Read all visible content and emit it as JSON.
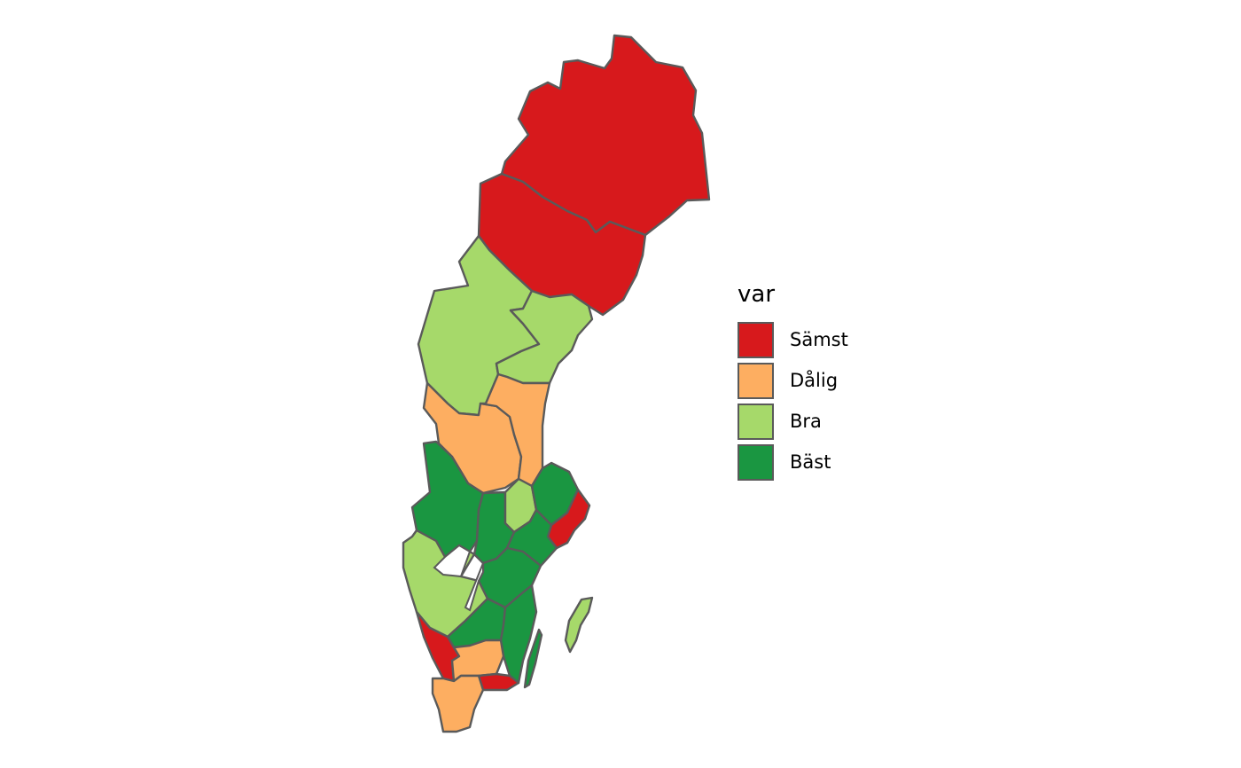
{
  "legend": {
    "title": "var",
    "items": [
      {
        "key": "samst",
        "label": "Sämst",
        "color": "#d7191c"
      },
      {
        "key": "dalig",
        "label": "Dålig",
        "color": "#fdae61"
      },
      {
        "key": "bra",
        "label": "Bra",
        "color": "#a6d96a"
      },
      {
        "key": "bast",
        "label": "Bäst",
        "color": "#1a9641"
      }
    ]
  },
  "map_regions": [
    {
      "name": "norrbotten",
      "category": "samst"
    },
    {
      "name": "vasterbotten",
      "category": "samst"
    },
    {
      "name": "jamtland",
      "category": "bra"
    },
    {
      "name": "vasternorrland",
      "category": "bra"
    },
    {
      "name": "dalarna",
      "category": "dalig"
    },
    {
      "name": "gavleborg",
      "category": "dalig"
    },
    {
      "name": "varmland",
      "category": "bast"
    },
    {
      "name": "orebro",
      "category": "bast"
    },
    {
      "name": "vastmanland",
      "category": "bra"
    },
    {
      "name": "uppsala",
      "category": "bast"
    },
    {
      "name": "stockholm",
      "category": "samst"
    },
    {
      "name": "sodermanland",
      "category": "bast"
    },
    {
      "name": "vastra-gotaland",
      "category": "bra"
    },
    {
      "name": "ostergotland",
      "category": "bast"
    },
    {
      "name": "jonkoping",
      "category": "bast"
    },
    {
      "name": "kalmar",
      "category": "bast"
    },
    {
      "name": "gotland",
      "category": "bra"
    },
    {
      "name": "halland",
      "category": "samst"
    },
    {
      "name": "kronoberg",
      "category": "dalig"
    },
    {
      "name": "blekinge",
      "category": "samst"
    },
    {
      "name": "skane",
      "category": "dalig"
    }
  ]
}
